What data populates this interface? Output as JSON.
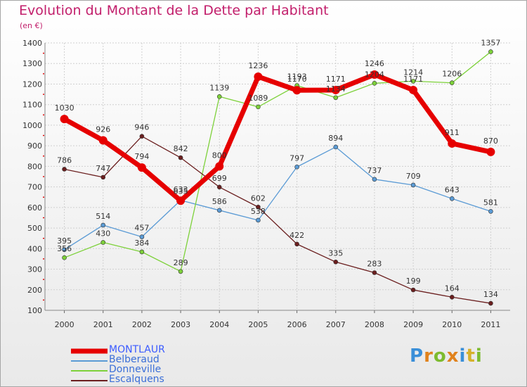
{
  "chart_data": {
    "type": "line",
    "title": "Evolution du Montant de la Dette par Habitant",
    "subtitle": "(en €)",
    "categories": [
      "2000",
      "2001",
      "2002",
      "2003",
      "2004",
      "2005",
      "2006",
      "2007",
      "2008",
      "2009",
      "2010",
      "2011"
    ],
    "ylim": [
      100,
      1400
    ],
    "yticks": [
      100,
      200,
      300,
      400,
      500,
      600,
      700,
      800,
      900,
      1000,
      1100,
      1200,
      1300,
      1400
    ],
    "grid": true,
    "legend_position": "bottom-left",
    "series": [
      {
        "name": "MONTLAUR",
        "color": "#e60000",
        "values": [
          1030,
          926,
          794,
          633,
          800,
          1236,
          1170,
          1171,
          1246,
          1171,
          911,
          870
        ]
      },
      {
        "name": "Belberaud",
        "color": "#5b9bd5",
        "values": [
          395,
          514,
          457,
          635,
          586,
          538,
          797,
          894,
          737,
          709,
          643,
          581
        ]
      },
      {
        "name": "Donneville",
        "color": "#7dd13a",
        "values": [
          356,
          430,
          384,
          289,
          1139,
          1089,
          1193,
          1134,
          1204,
          1214,
          1206,
          1357
        ]
      },
      {
        "name": "Escalquens",
        "color": "#6b1f1f",
        "values": [
          786,
          747,
          946,
          842,
          699,
          602,
          422,
          335,
          283,
          199,
          164,
          134
        ]
      }
    ]
  },
  "logo": {
    "letters": [
      "P",
      "r",
      "o",
      "x",
      "i",
      "t",
      "i"
    ],
    "colors": [
      "#3a8fd8",
      "#e0821c",
      "#7dbb2f",
      "#e0821c",
      "#3a8fd8",
      "#d6b12a",
      "#7dbb2f"
    ]
  }
}
